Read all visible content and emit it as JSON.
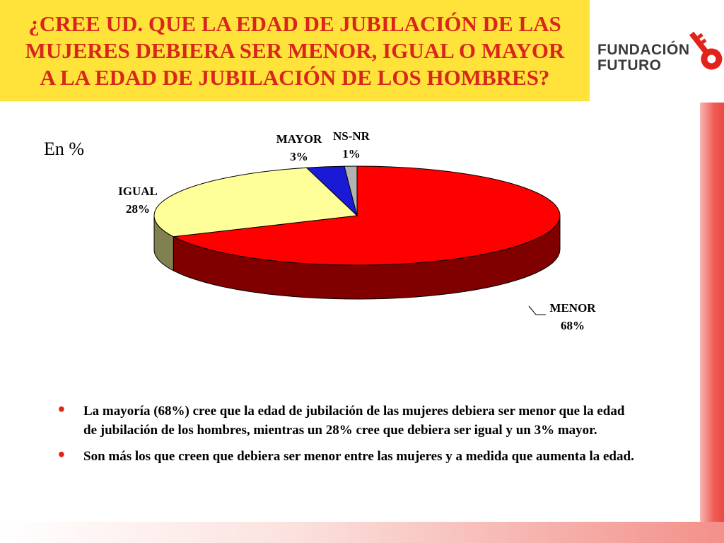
{
  "title": {
    "lines": [
      "¿CREE UD. QUE LA EDAD DE JUBILACIÓN DE LAS",
      "MUJERES DEBIERA SER MENOR, IGUAL O MAYOR",
      "A LA EDAD DE JUBILACIÓN DE LOS HOMBRES?"
    ]
  },
  "logo": {
    "line1": "FUNDACIÓN",
    "line2": "FUTURO",
    "icon": "key-icon"
  },
  "unit_label": "En %",
  "chart_data": {
    "type": "pie",
    "style": "3d",
    "slices": [
      {
        "label": "MENOR",
        "value": 68,
        "display": "68%",
        "color": "#ff0000",
        "side_color": "#800000"
      },
      {
        "label": "IGUAL",
        "value": 28,
        "display": "28%",
        "color": "#ffff99",
        "side_color": "#808050"
      },
      {
        "label": "MAYOR",
        "value": 3,
        "display": "3%",
        "color": "#1a1ad6",
        "side_color": "#0d0d6b"
      },
      {
        "label": "NS-NR",
        "value": 1,
        "display": "1%",
        "color": "#b2b2b2",
        "side_color": "#6e6e6e"
      }
    ]
  },
  "bullets": [
    "La mayoría (68%) cree que la edad de jubilación de las mujeres debiera ser menor que la edad de jubilación de los hombres, mientras un 28% cree que debiera ser igual y un 3% mayor.",
    "Son más los que creen que debiera ser menor entre las mujeres y a medida que aumenta la edad."
  ],
  "colors": {
    "title_bg": "#ffe33a",
    "title_text": "#d9261c",
    "bullet": "#e2231a"
  }
}
